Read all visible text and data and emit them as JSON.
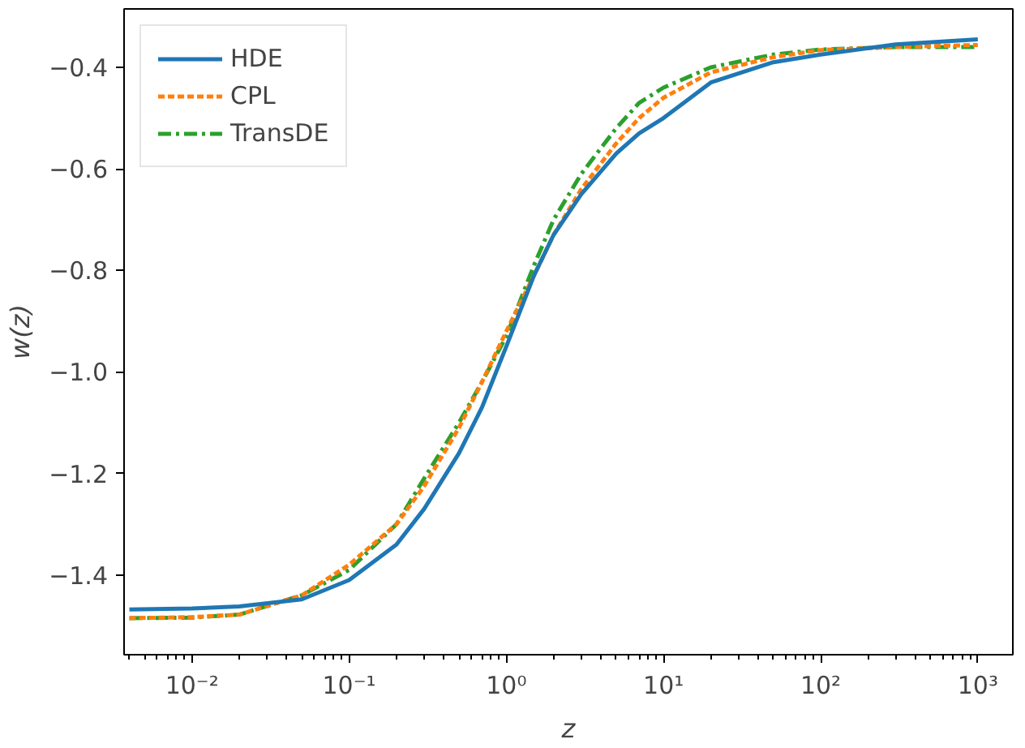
{
  "chart_data": {
    "type": "line",
    "xlabel": "z",
    "ylabel": "w(z)",
    "log": "x",
    "grid": false,
    "legend": "top left",
    "x": [
      0.004,
      0.01,
      0.02,
      0.05,
      0.1,
      0.2,
      0.3,
      0.5,
      0.7,
      1,
      1.5,
      2,
      3,
      5,
      7,
      10,
      20,
      50,
      100,
      300,
      1000
    ],
    "xlim": [
      0.0037,
      1670
    ],
    "ylim": [
      -1.557,
      -0.285
    ],
    "xticks": [
      {
        "value": 0.01,
        "label": "10⁻²"
      },
      {
        "value": 0.1,
        "label": "10⁻¹"
      },
      {
        "value": 1,
        "label": "10⁰"
      },
      {
        "value": 10,
        "label": "10¹"
      },
      {
        "value": 100,
        "label": "10²"
      },
      {
        "value": 1000,
        "label": "10³"
      }
    ],
    "yticks": [
      {
        "value": -1.4,
        "label": "−1.4"
      },
      {
        "value": -1.2,
        "label": "−1.2"
      },
      {
        "value": -1.0,
        "label": "−1.0"
      },
      {
        "value": -0.8,
        "label": "−0.8"
      },
      {
        "value": -0.6,
        "label": "−0.6"
      },
      {
        "value": -0.4,
        "label": "−0.4"
      }
    ],
    "series": [
      {
        "name": "HDE",
        "color": "#1f77b4",
        "line_style": "solid",
        "values": [
          -1.468,
          -1.466,
          -1.462,
          -1.448,
          -1.41,
          -1.34,
          -1.27,
          -1.16,
          -1.07,
          -0.95,
          -0.81,
          -0.73,
          -0.65,
          -0.57,
          -0.53,
          -0.5,
          -0.43,
          -0.39,
          -0.375,
          -0.355,
          -0.345
        ]
      },
      {
        "name": "CPL",
        "color": "#ff7f0e",
        "line_style": "dashed",
        "values": [
          -1.485,
          -1.483,
          -1.478,
          -1.44,
          -1.38,
          -1.3,
          -1.225,
          -1.11,
          -1.02,
          -0.92,
          -0.81,
          -0.73,
          -0.64,
          -0.55,
          -0.5,
          -0.46,
          -0.41,
          -0.38,
          -0.366,
          -0.36,
          -0.356
        ]
      },
      {
        "name": "TransDE",
        "color": "#2ca02c",
        "line_style": "dashdot",
        "values": [
          -1.485,
          -1.484,
          -1.478,
          -1.44,
          -1.39,
          -1.3,
          -1.21,
          -1.1,
          -1.02,
          -0.93,
          -0.79,
          -0.7,
          -0.61,
          -0.52,
          -0.47,
          -0.44,
          -0.4,
          -0.375,
          -0.365,
          -0.36,
          -0.36
        ]
      }
    ]
  }
}
